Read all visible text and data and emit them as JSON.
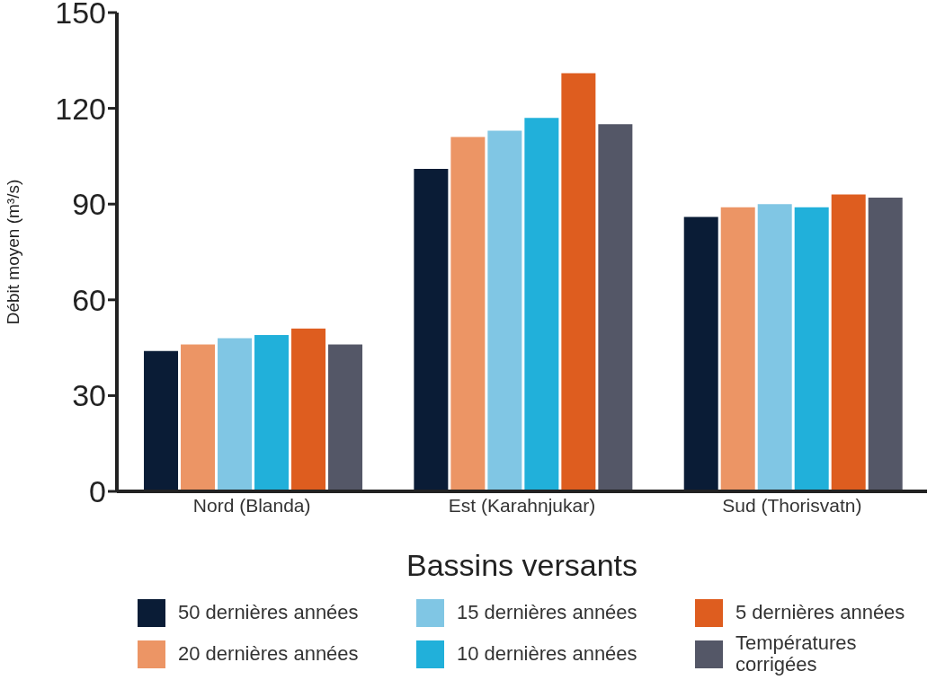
{
  "chart_data": {
    "type": "bar",
    "xlabel": "Bassins versants",
    "ylabel": "Débit moyen (m³/s)",
    "categories": [
      "Nord (Blanda)",
      "Est (Karahnjukar)",
      "Sud (Thorisvatn)"
    ],
    "series": [
      {
        "name": "50 dernières années",
        "color": "#0a1c36",
        "values": [
          44,
          101,
          86
        ]
      },
      {
        "name": "20 dernières années",
        "color": "#ec9565",
        "values": [
          46,
          111,
          89
        ]
      },
      {
        "name": "15 dernières années",
        "color": "#80c6e4",
        "values": [
          48,
          113,
          90
        ]
      },
      {
        "name": "10 dernières années",
        "color": "#21b0da",
        "values": [
          49,
          117,
          89
        ]
      },
      {
        "name": "5 dernières années",
        "color": "#de5d1f",
        "values": [
          51,
          131,
          93
        ]
      },
      {
        "name": "Températures corrigées",
        "color": "#545767",
        "values": [
          46,
          115,
          92
        ]
      }
    ],
    "ylim": [
      0,
      150
    ],
    "yticks": [
      0,
      30,
      60,
      90,
      120,
      150
    ],
    "grid": false,
    "legend": "bottom"
  }
}
